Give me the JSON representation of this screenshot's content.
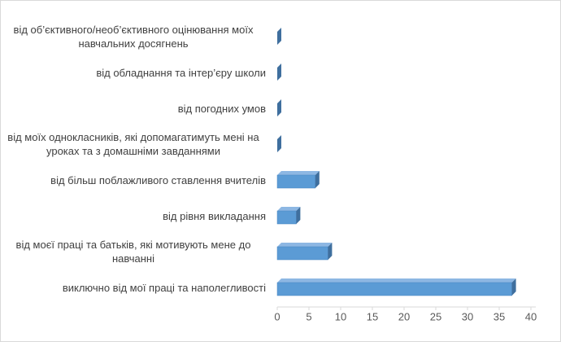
{
  "chart_data": {
    "type": "bar3d-horizontal",
    "categories": [
      "від об’єктивного/необ’єктивного оцінювання моїх навчальних досягнень",
      "від обладнання та інтер’єру школи",
      "від погодних умов",
      "від моїх однокласників, які допомагатимуть мені на уроках та з домашніми завданнями",
      "від більш поблажливого ставлення вчителів",
      "від рівня викладання",
      "від моєї праці та батьків, які мотивують мене до навчанні",
      "виключно від мої праці та наполегливості"
    ],
    "values": [
      0,
      0,
      0,
      0,
      6,
      3,
      8,
      37
    ],
    "color": "#5b9bd5",
    "xlim": [
      0,
      40
    ],
    "xticks": [
      0,
      5,
      10,
      15,
      20,
      25,
      30,
      35,
      40
    ]
  }
}
